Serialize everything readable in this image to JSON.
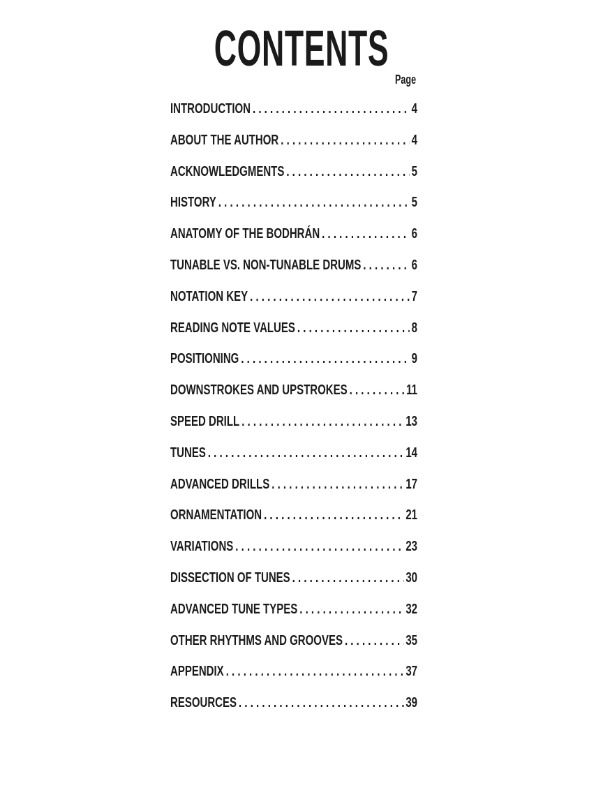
{
  "title": "CONTENTS",
  "page_label": "Page",
  "entries": [
    {
      "label": "INTRODUCTION",
      "page": "4"
    },
    {
      "label": "ABOUT THE AUTHOR",
      "page": "4"
    },
    {
      "label": "ACKNOWLEDGMENTS",
      "page": "5"
    },
    {
      "label": "HISTORY",
      "page": "5"
    },
    {
      "label": "ANATOMY OF THE BODHRÁN",
      "page": "6"
    },
    {
      "label": "TUNABLE VS. NON-TUNABLE DRUMS",
      "page": "6"
    },
    {
      "label": "NOTATION KEY",
      "page": "7"
    },
    {
      "label": "READING NOTE VALUES",
      "page": "8"
    },
    {
      "label": "POSITIONING",
      "page": "9"
    },
    {
      "label": "DOWNSTROKES AND UPSTROKES",
      "page": "11"
    },
    {
      "label": "SPEED DRILL",
      "page": "13"
    },
    {
      "label": "TUNES",
      "page": "14"
    },
    {
      "label": "ADVANCED DRILLS",
      "page": "17"
    },
    {
      "label": "ORNAMENTATION",
      "page": "21"
    },
    {
      "label": "VARIATIONS",
      "page": "23"
    },
    {
      "label": "DISSECTION OF TUNES",
      "page": "30"
    },
    {
      "label": "ADVANCED TUNE TYPES",
      "page": "32"
    },
    {
      "label": "OTHER RHYTHMS AND GROOVES",
      "page": "35"
    },
    {
      "label": "APPENDIX",
      "page": "37"
    },
    {
      "label": "RESOURCES",
      "page": "39"
    }
  ]
}
